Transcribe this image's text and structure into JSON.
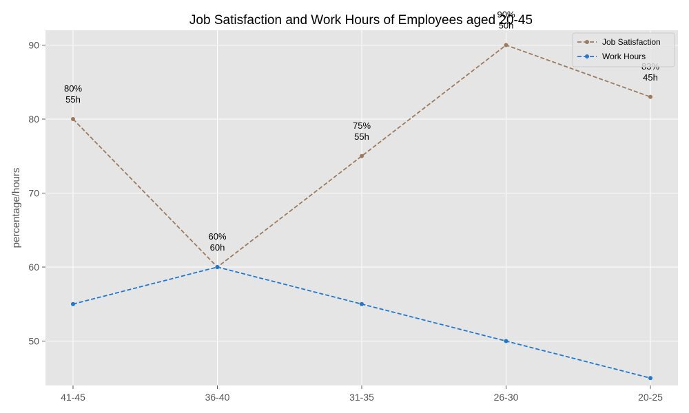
{
  "chart_data": {
    "type": "line",
    "title": "Job Satisfaction and Work Hours of Employees aged 20-45",
    "xlabel": "",
    "ylabel": "percentage/hours",
    "categories": [
      "41-45",
      "36-40",
      "31-35",
      "26-30",
      "20-25"
    ],
    "ylim": [
      44,
      92
    ],
    "yticks": [
      50,
      60,
      70,
      80,
      90
    ],
    "grid": true,
    "legend_position": "top-right",
    "series": [
      {
        "name": "Job Satisfaction",
        "values": [
          80,
          60,
          75,
          90,
          83
        ],
        "color": "#9c7a5f",
        "line_style": "dashed",
        "marker": "circle"
      },
      {
        "name": "Work Hours",
        "values": [
          55,
          60,
          55,
          50,
          45
        ],
        "color": "#1f77d0",
        "line_style": "dashed",
        "marker": "circle"
      }
    ],
    "annotations": [
      {
        "category": "41-45",
        "line1": "80%",
        "line2": "55h"
      },
      {
        "category": "36-40",
        "line1": "60%",
        "line2": "60h"
      },
      {
        "category": "31-35",
        "line1": "75%",
        "line2": "55h"
      },
      {
        "category": "26-30",
        "line1": "90%",
        "line2": "50h"
      },
      {
        "category": "20-25",
        "line1": "83%",
        "line2": "45h"
      }
    ],
    "background_color": "#e5e5e5",
    "grid_color": "#ffffff"
  }
}
